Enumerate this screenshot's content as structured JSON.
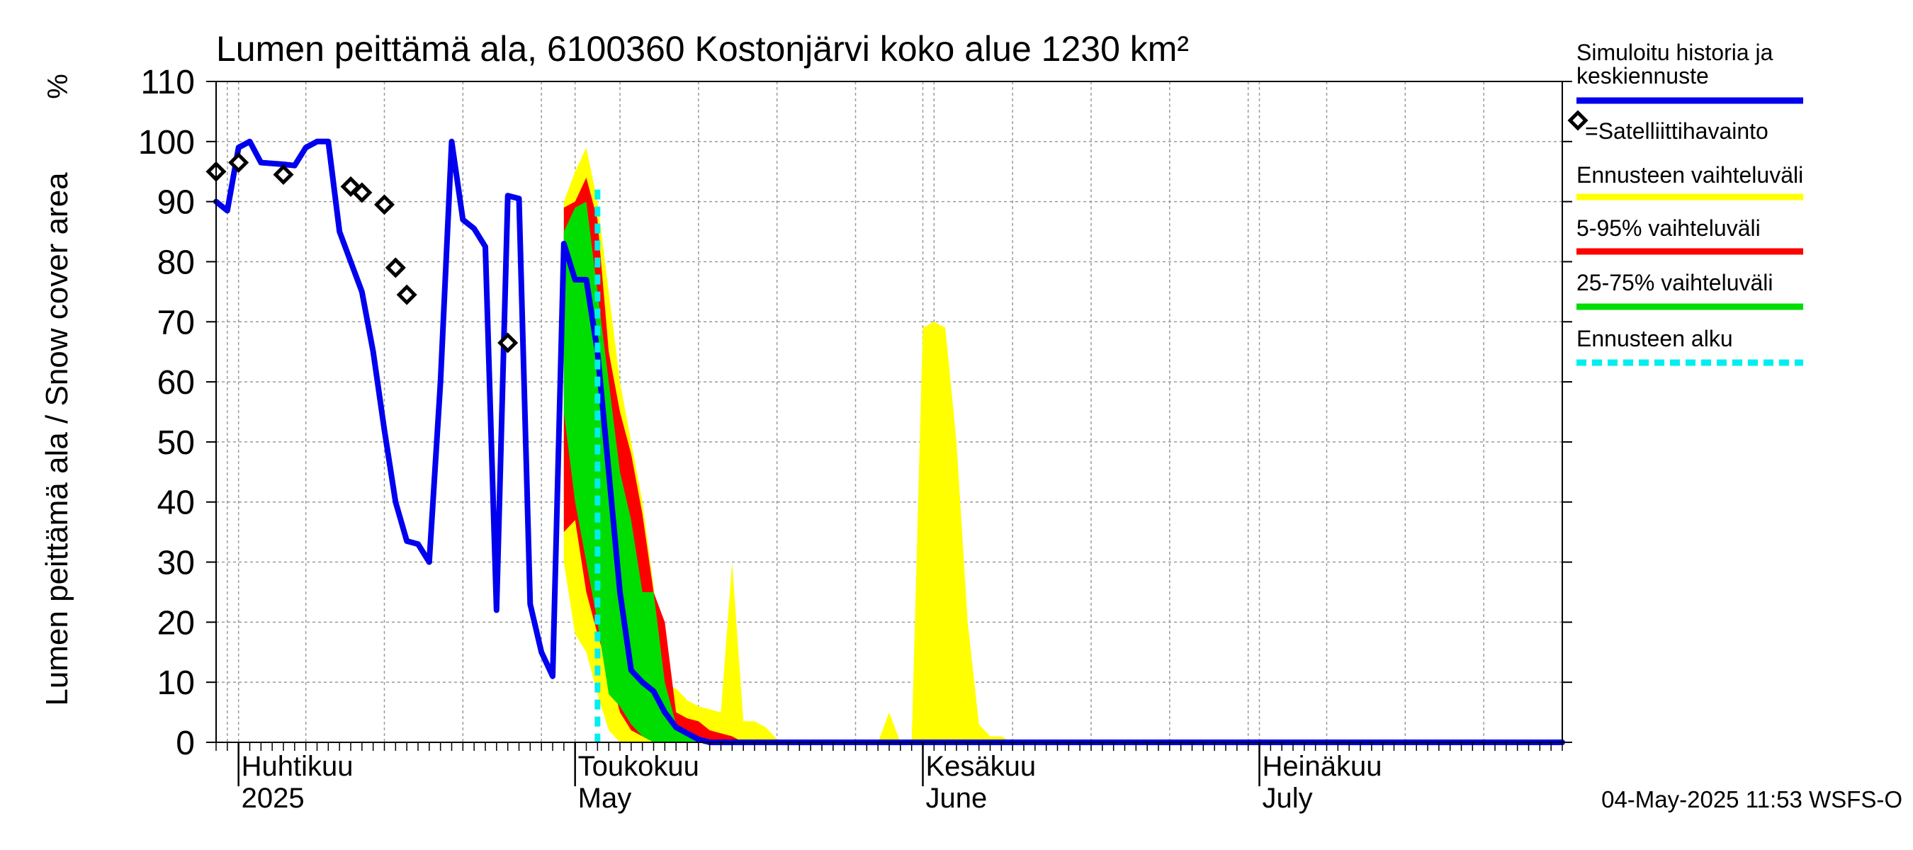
{
  "chart_data": {
    "type": "area",
    "title": "Lumen peittämä ala, 6100360 Kostonjärvi koko alue 1230 km²",
    "ylabel": "Lumen peittämä ala / Snow cover area",
    "yunit": "%",
    "ylim": [
      0,
      110
    ],
    "yticks": [
      "0",
      "10",
      "20",
      "30",
      "40",
      "50",
      "60",
      "70",
      "80",
      "90",
      "100",
      "110"
    ],
    "xlim": [
      "2025-03-30",
      "2025-07-28"
    ],
    "month_labels": [
      {
        "date": "2025-04-01",
        "fi": "Huhtikuu",
        "en": "2025"
      },
      {
        "date": "2025-05-01",
        "fi": "Toukokuu",
        "en": "May"
      },
      {
        "date": "2025-06-01",
        "fi": "Kesäkuu",
        "en": "June"
      },
      {
        "date": "2025-07-01",
        "fi": "Heinäkuu",
        "en": "July"
      }
    ],
    "forecast_start": "2025-05-03",
    "grid": true,
    "legend_position": "right",
    "colors": {
      "history": "#0000ee",
      "full_range": "#ffff00",
      "range_5_95": "#ff0000",
      "range_25_75": "#00dd00",
      "forecast_start": "#00eeee",
      "observation": "#000000"
    },
    "series": [
      {
        "name": "Simuloitu historia ja keskiennuste",
        "kind": "line",
        "points": [
          [
            "2025-03-30",
            90
          ],
          [
            "2025-03-31",
            88.5
          ],
          [
            "2025-04-01",
            99
          ],
          [
            "2025-04-02",
            100
          ],
          [
            "2025-04-03",
            96.5
          ],
          [
            "2025-04-05",
            96.2
          ],
          [
            "2025-04-06",
            96
          ],
          [
            "2025-04-07",
            99
          ],
          [
            "2025-04-08",
            100
          ],
          [
            "2025-04-09",
            100
          ],
          [
            "2025-04-10",
            85
          ],
          [
            "2025-04-11",
            80
          ],
          [
            "2025-04-12",
            75
          ],
          [
            "2025-04-13",
            65
          ],
          [
            "2025-04-14",
            52
          ],
          [
            "2025-04-15",
            40
          ],
          [
            "2025-04-16",
            33.5
          ],
          [
            "2025-04-17",
            33
          ],
          [
            "2025-04-18",
            30
          ],
          [
            "2025-04-19",
            60
          ],
          [
            "2025-04-20",
            100
          ],
          [
            "2025-04-21",
            87
          ],
          [
            "2025-04-22",
            85.5
          ],
          [
            "2025-04-23",
            82.5
          ],
          [
            "2025-04-24",
            22
          ],
          [
            "2025-04-25",
            91
          ],
          [
            "2025-04-26",
            90.5
          ],
          [
            "2025-04-27",
            23
          ],
          [
            "2025-04-28",
            15
          ],
          [
            "2025-04-29",
            11
          ],
          [
            "2025-04-30",
            83
          ],
          [
            "2025-05-01",
            77
          ],
          [
            "2025-05-02",
            77
          ],
          [
            "2025-05-03",
            65
          ],
          [
            "2025-05-04",
            45
          ],
          [
            "2025-05-05",
            25
          ],
          [
            "2025-05-06",
            12
          ],
          [
            "2025-05-07",
            10
          ],
          [
            "2025-05-08",
            8.5
          ],
          [
            "2025-05-09",
            5
          ],
          [
            "2025-05-10",
            2.5
          ],
          [
            "2025-05-11",
            1.5
          ],
          [
            "2025-05-12",
            0.5
          ],
          [
            "2025-05-13",
            0
          ],
          [
            "2025-07-28",
            0
          ]
        ]
      },
      {
        "name": "Satelliittihavainto",
        "kind": "marker",
        "points": [
          [
            "2025-03-30",
            95
          ],
          [
            "2025-04-01",
            96.5
          ],
          [
            "2025-04-05",
            94.5
          ],
          [
            "2025-04-11",
            92.5
          ],
          [
            "2025-04-12",
            91.5
          ],
          [
            "2025-04-14",
            89.5
          ],
          [
            "2025-04-15",
            79
          ],
          [
            "2025-04-16",
            74.5
          ],
          [
            "2025-04-25",
            66.5
          ]
        ]
      },
      {
        "name": "Ennusteen vaihteluväli",
        "kind": "band",
        "upper": [
          [
            "2025-04-30",
            90
          ],
          [
            "2025-05-01",
            95
          ],
          [
            "2025-05-02",
            99
          ],
          [
            "2025-05-03",
            90
          ],
          [
            "2025-05-04",
            75
          ],
          [
            "2025-05-05",
            60
          ],
          [
            "2025-05-06",
            50
          ],
          [
            "2025-05-07",
            40
          ],
          [
            "2025-05-08",
            26
          ],
          [
            "2025-05-09",
            9
          ],
          [
            "2025-05-10",
            9
          ],
          [
            "2025-05-11",
            7
          ],
          [
            "2025-05-12",
            6
          ],
          [
            "2025-05-13",
            5.5
          ],
          [
            "2025-05-14",
            5
          ],
          [
            "2025-05-15",
            30
          ],
          [
            "2025-05-16",
            3.5
          ],
          [
            "2025-05-17",
            3.5
          ],
          [
            "2025-05-18",
            2.5
          ],
          [
            "2025-05-19",
            0.5
          ],
          [
            "2025-05-20",
            0
          ],
          [
            "2025-05-28",
            0
          ],
          [
            "2025-05-29",
            5
          ],
          [
            "2025-05-30",
            0
          ],
          [
            "2025-05-31",
            0
          ],
          [
            "2025-06-01",
            69
          ],
          [
            "2025-06-02",
            70
          ],
          [
            "2025-06-03",
            69
          ],
          [
            "2025-06-04",
            50
          ],
          [
            "2025-06-05",
            20
          ],
          [
            "2025-06-06",
            3
          ],
          [
            "2025-06-07",
            1
          ],
          [
            "2025-06-08",
            1
          ],
          [
            "2025-06-09",
            0
          ],
          [
            "2025-07-28",
            0
          ]
        ],
        "lower": [
          [
            "2025-04-30",
            30
          ],
          [
            "2025-05-01",
            18
          ],
          [
            "2025-05-02",
            15
          ],
          [
            "2025-05-03",
            8
          ],
          [
            "2025-05-04",
            2
          ],
          [
            "2025-05-05",
            0
          ],
          [
            "2025-07-28",
            0
          ]
        ]
      },
      {
        "name": "5-95% vaihteluväli",
        "kind": "band",
        "upper": [
          [
            "2025-04-30",
            89
          ],
          [
            "2025-05-01",
            90
          ],
          [
            "2025-05-02",
            94
          ],
          [
            "2025-05-03",
            87
          ],
          [
            "2025-05-04",
            65
          ],
          [
            "2025-05-05",
            55
          ],
          [
            "2025-05-06",
            48
          ],
          [
            "2025-05-07",
            38
          ],
          [
            "2025-05-08",
            25
          ],
          [
            "2025-05-09",
            20
          ],
          [
            "2025-05-10",
            5
          ],
          [
            "2025-05-11",
            4
          ],
          [
            "2025-05-12",
            3.5
          ],
          [
            "2025-05-13",
            2
          ],
          [
            "2025-05-14",
            1.5
          ],
          [
            "2025-05-15",
            1
          ],
          [
            "2025-05-16",
            0
          ],
          [
            "2025-07-28",
            0
          ]
        ],
        "lower": [
          [
            "2025-04-30",
            35
          ],
          [
            "2025-05-01",
            37
          ],
          [
            "2025-05-02",
            25
          ],
          [
            "2025-05-03",
            18
          ],
          [
            "2025-05-04",
            12
          ],
          [
            "2025-05-05",
            5
          ],
          [
            "2025-05-06",
            2
          ],
          [
            "2025-05-07",
            1
          ],
          [
            "2025-05-08",
            0
          ],
          [
            "2025-07-28",
            0
          ]
        ]
      },
      {
        "name": "25-75% vaihteluväli",
        "kind": "band",
        "upper": [
          [
            "2025-04-30",
            85
          ],
          [
            "2025-05-01",
            89
          ],
          [
            "2025-05-02",
            90
          ],
          [
            "2025-05-03",
            75
          ],
          [
            "2025-05-04",
            60
          ],
          [
            "2025-05-05",
            45
          ],
          [
            "2025-05-06",
            37
          ],
          [
            "2025-05-07",
            25
          ],
          [
            "2025-05-08",
            25
          ],
          [
            "2025-05-09",
            10
          ],
          [
            "2025-05-10",
            3
          ],
          [
            "2025-05-11",
            1
          ],
          [
            "2025-05-12",
            0.5
          ],
          [
            "2025-05-13",
            0
          ],
          [
            "2025-07-28",
            0
          ]
        ],
        "lower": [
          [
            "2025-04-30",
            55
          ],
          [
            "2025-05-01",
            40
          ],
          [
            "2025-05-02",
            30
          ],
          [
            "2025-05-03",
            20
          ],
          [
            "2025-05-04",
            8
          ],
          [
            "2025-05-05",
            6
          ],
          [
            "2025-05-06",
            3
          ],
          [
            "2025-05-07",
            1
          ],
          [
            "2025-05-08",
            0
          ],
          [
            "2025-07-28",
            0
          ]
        ]
      }
    ],
    "legend": [
      {
        "label": "Simuloitu historia ja keskiennuste",
        "style": "line",
        "color": "#0000ee"
      },
      {
        "label": "=Satelliittihavainto",
        "style": "marker",
        "color": "#000000"
      },
      {
        "label": "Ennusteen vaihteluväli",
        "style": "line",
        "color": "#ffff00"
      },
      {
        "label": "5-95% vaihteluväli",
        "style": "line",
        "color": "#ff0000"
      },
      {
        "label": "25-75% vaihteluväli",
        "style": "line",
        "color": "#00dd00"
      },
      {
        "label": "Ennusteen alku",
        "style": "dashed",
        "color": "#00eeee"
      }
    ],
    "footer": "04-May-2025 11:53 WSFS-O"
  }
}
